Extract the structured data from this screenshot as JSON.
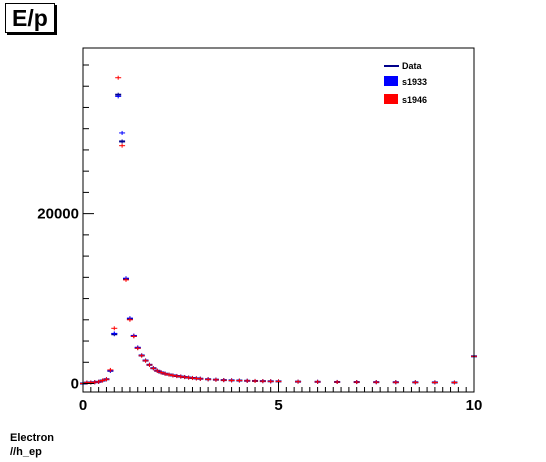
{
  "title": "E/p",
  "footer": {
    "line1": "Electron",
    "line2": "//h_ep"
  },
  "chart_data": {
    "type": "scatter",
    "title": "E/p",
    "xlabel": "",
    "ylabel": "",
    "xlim": [
      0,
      10
    ],
    "ylim": [
      -1000,
      39500
    ],
    "xticks": [
      0,
      5,
      10
    ],
    "yticks": [
      0,
      20000
    ],
    "grid": false,
    "legend_position": "top-right",
    "x": [
      0.0,
      0.1,
      0.2,
      0.3,
      0.4,
      0.5,
      0.6,
      0.7,
      0.8,
      0.9,
      1.0,
      1.1,
      1.2,
      1.3,
      1.4,
      1.5,
      1.6,
      1.7,
      1.8,
      1.9,
      2.0,
      2.1,
      2.2,
      2.3,
      2.4,
      2.5,
      2.6,
      2.7,
      2.8,
      2.9,
      3.0,
      3.2,
      3.4,
      3.6,
      3.8,
      4.0,
      4.2,
      4.4,
      4.6,
      4.8,
      5.0,
      5.5,
      6.0,
      6.5,
      7.0,
      7.5,
      8.0,
      8.5,
      9.0,
      9.5,
      10.0
    ],
    "series": [
      {
        "name": "Data",
        "color": "#00008b",
        "values": [
          0,
          100,
          120,
          150,
          200,
          350,
          500,
          1500,
          5800,
          34000,
          28500,
          12300,
          7600,
          5600,
          4200,
          3300,
          2700,
          2200,
          1800,
          1500,
          1300,
          1150,
          1050,
          950,
          880,
          820,
          760,
          700,
          650,
          600,
          560,
          500,
          450,
          400,
          370,
          350,
          320,
          300,
          280,
          260,
          250,
          220,
          200,
          180,
          170,
          160,
          150,
          140,
          130,
          120,
          3200
        ]
      },
      {
        "name": "s1933",
        "color": "#0000ff",
        "values": [
          0,
          100,
          120,
          150,
          200,
          350,
          500,
          1500,
          5900,
          33800,
          29500,
          12400,
          7700,
          5650,
          4250,
          3320,
          2720,
          2210,
          1810,
          1510,
          1310,
          1160,
          1060,
          960,
          890,
          830,
          770,
          710,
          660,
          610,
          570,
          510,
          460,
          410,
          380,
          355,
          325,
          305,
          285,
          265,
          255,
          225,
          205,
          185,
          175,
          165,
          155,
          145,
          135,
          125,
          3200
        ]
      },
      {
        "name": "s1946",
        "color": "#ff0000",
        "values": [
          0,
          100,
          120,
          150,
          200,
          350,
          500,
          1600,
          6500,
          36000,
          28000,
          12200,
          7500,
          5550,
          4150,
          3280,
          2680,
          2190,
          1790,
          1490,
          1290,
          1140,
          1040,
          940,
          870,
          810,
          750,
          690,
          640,
          590,
          550,
          490,
          440,
          390,
          360,
          345,
          315,
          295,
          275,
          255,
          245,
          215,
          195,
          175,
          165,
          155,
          145,
          135,
          125,
          115,
          3200
        ]
      }
    ]
  }
}
